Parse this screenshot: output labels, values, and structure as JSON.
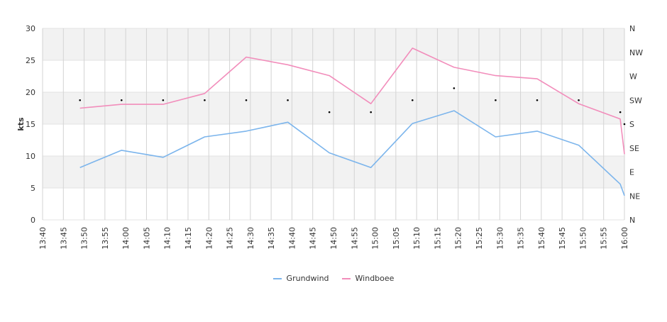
{
  "chart_data": {
    "type": "line",
    "ylabel": "kts",
    "ylim": [
      0,
      30
    ],
    "yticks": [
      0,
      5,
      10,
      15,
      20,
      25,
      30
    ],
    "x_tick_labels": [
      "13:40",
      "13:45",
      "13:50",
      "13:55",
      "14:00",
      "14:05",
      "14:10",
      "14:15",
      "14:20",
      "14:25",
      "14:30",
      "14:35",
      "14:40",
      "14:45",
      "14:50",
      "14:55",
      "15:00",
      "15:05",
      "15:10",
      "15:15",
      "15:20",
      "15:25",
      "15:30",
      "15:35",
      "15:40",
      "15:45",
      "15:50",
      "15:55",
      "16:00"
    ],
    "x_range": [
      "13:40",
      "16:00"
    ],
    "direction_axis_labels": [
      "N",
      "NE",
      "E",
      "SE",
      "S",
      "SW",
      "W",
      "NW",
      "N"
    ],
    "series": [
      {
        "name": "Grundwind",
        "color": "#7cb5ec",
        "points": [
          [
            "13:49",
            8.2
          ],
          [
            "13:59",
            10.9
          ],
          [
            "14:09",
            9.8
          ],
          [
            "14:19",
            13.0
          ],
          [
            "14:29",
            13.9
          ],
          [
            "14:39",
            15.3
          ],
          [
            "14:49",
            10.5
          ],
          [
            "14:59",
            8.2
          ],
          [
            "15:09",
            15.1
          ],
          [
            "15:19",
            17.1
          ],
          [
            "15:29",
            13.0
          ],
          [
            "15:39",
            13.9
          ],
          [
            "15:49",
            11.7
          ],
          [
            "15:59",
            5.6
          ],
          [
            "16:00",
            3.8
          ]
        ]
      },
      {
        "name": "Windboee",
        "color": "#f28dbb",
        "points": [
          [
            "13:49",
            17.5
          ],
          [
            "13:59",
            18.1
          ],
          [
            "14:09",
            18.1
          ],
          [
            "14:19",
            19.8
          ],
          [
            "14:29",
            25.5
          ],
          [
            "14:39",
            24.3
          ],
          [
            "14:49",
            22.6
          ],
          [
            "14:59",
            18.2
          ],
          [
            "15:09",
            26.9
          ],
          [
            "15:19",
            23.9
          ],
          [
            "15:29",
            22.6
          ],
          [
            "15:39",
            22.1
          ],
          [
            "15:49",
            18.2
          ],
          [
            "15:59",
            15.8
          ],
          [
            "16:00",
            10.3
          ]
        ]
      }
    ],
    "direction_markers": [
      [
        "13:49",
        "SW"
      ],
      [
        "13:59",
        "SW"
      ],
      [
        "14:09",
        "SW"
      ],
      [
        "14:19",
        "SW"
      ],
      [
        "14:29",
        "SW"
      ],
      [
        "14:39",
        "SW"
      ],
      [
        "14:49",
        "SSW"
      ],
      [
        "14:59",
        "SSW"
      ],
      [
        "15:09",
        "SW"
      ],
      [
        "15:19",
        "WSW"
      ],
      [
        "15:29",
        "SW"
      ],
      [
        "15:39",
        "SW"
      ],
      [
        "15:49",
        "SW"
      ],
      [
        "15:59",
        "SSW"
      ],
      [
        "16:00",
        "S"
      ]
    ],
    "grid": true,
    "legend_position": "bottom-center"
  }
}
